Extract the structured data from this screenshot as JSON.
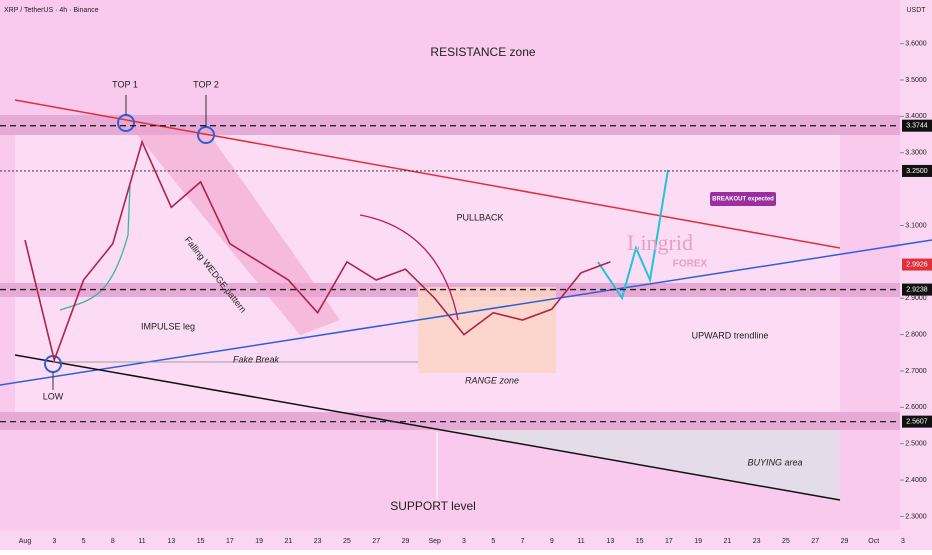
{
  "chart_data": {
    "type": "line",
    "title": "XRP / TetherUS · 4h · Binance",
    "y_axis_label": "USDT",
    "categories": [
      "Aug",
      "3",
      "5",
      "8",
      "11",
      "13",
      "15",
      "17",
      "19",
      "21",
      "23",
      "25",
      "27",
      "29",
      "Sep",
      "3",
      "5",
      "7",
      "9",
      "11",
      "13",
      "15",
      "17",
      "19",
      "21",
      "23",
      "25",
      "27",
      "29",
      "Oct",
      "3"
    ],
    "series": [
      {
        "color": "#b0224a",
        "values": [
          3.06,
          2.73,
          2.95,
          3.05,
          3.33,
          3.15,
          3.22,
          3.05,
          3.0,
          2.95,
          2.86,
          3.0,
          2.95,
          2.98,
          2.9,
          2.8,
          2.86,
          2.84,
          2.87,
          2.97,
          3.0,
          null,
          null,
          null,
          null,
          null,
          null,
          null,
          null,
          null,
          null
        ]
      }
    ],
    "ylim": [
      2.26,
      3.72
    ],
    "yticks": [
      {
        "value": 3.6,
        "label": "3.6000"
      },
      {
        "value": 3.5,
        "label": "3.5000"
      },
      {
        "value": 3.4,
        "label": "3.4000"
      },
      {
        "value": 3.3,
        "label": "3.3000"
      },
      {
        "value": 3.1,
        "label": "3.1000"
      },
      {
        "value": 2.9,
        "label": "2.9000"
      },
      {
        "value": 2.8,
        "label": "2.8000"
      },
      {
        "value": 2.7,
        "label": "2.7000"
      },
      {
        "value": 2.6,
        "label": "2.6000"
      },
      {
        "value": 2.5,
        "label": "2.5000"
      },
      {
        "value": 2.4,
        "label": "2.4000"
      },
      {
        "value": 2.3,
        "label": "2.3000"
      }
    ],
    "price_levels": [
      {
        "value": 3.3744,
        "label": "3.3744"
      },
      {
        "value": 3.25,
        "label": "3.2500"
      },
      {
        "value": 2.9926,
        "label": "2.9926"
      },
      {
        "value": 2.9238,
        "label": "2.9238"
      },
      {
        "value": 2.5607,
        "label": "2.5607"
      }
    ],
    "annotations": [
      "RESISTANCE zone",
      "TOP 1",
      "TOP 2",
      "LOW",
      "IMPULSE leg",
      "Falling WEDGE pattern",
      "Fake Break",
      "PULLBACK",
      "RANGE zone",
      "BREAKOUT expected",
      "UPWARD trendline",
      "BUYING area",
      "SUPPORT level",
      "Lingrid",
      "FOREX"
    ]
  }
}
